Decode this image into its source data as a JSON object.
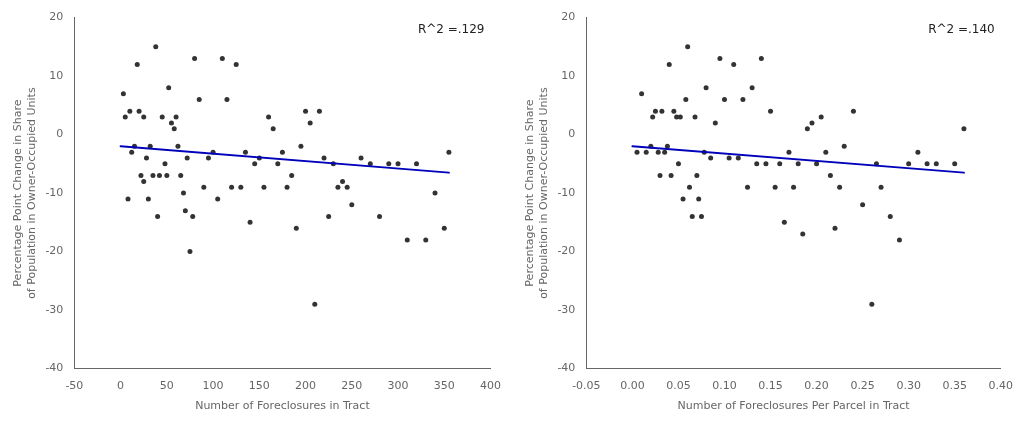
{
  "chart_data": [
    {
      "type": "scatter",
      "xlabel": "Number of Foreclosures in Tract",
      "ylabel": "Percentage Point Change in Share\nof Population in Owner-Occupied Units",
      "xlim": [
        -50,
        400
      ],
      "ylim": [
        -40,
        20
      ],
      "xticks": [
        -50,
        0,
        50,
        100,
        150,
        200,
        250,
        300,
        350,
        400
      ],
      "yticks": [
        -40,
        -30,
        -20,
        -10,
        0,
        10,
        20
      ],
      "grid": false,
      "annotation": "R^2 =.129",
      "series": [
        {
          "type": "scatter",
          "color": "#333333",
          "marker": "point",
          "x": [
            3,
            5,
            8,
            10,
            12,
            15,
            18,
            20,
            22,
            25,
            25,
            28,
            30,
            32,
            35,
            38,
            40,
            42,
            45,
            48,
            50,
            52,
            55,
            58,
            60,
            62,
            65,
            68,
            70,
            72,
            75,
            78,
            80,
            85,
            90,
            95,
            100,
            105,
            110,
            115,
            120,
            125,
            130,
            135,
            140,
            145,
            150,
            155,
            160,
            165,
            170,
            175,
            180,
            185,
            190,
            195,
            200,
            205,
            210,
            215,
            220,
            225,
            230,
            235,
            240,
            245,
            250,
            260,
            270,
            280,
            290,
            300,
            310,
            320,
            330,
            340,
            350,
            355
          ],
          "values": [
            7,
            3,
            -11,
            4,
            -3,
            -2,
            12,
            4,
            -7,
            -8,
            3,
            -4,
            -11,
            -2,
            -7,
            15,
            -14,
            -7,
            3,
            -5,
            -7,
            8,
            2,
            1,
            3,
            -2,
            -7,
            -10,
            -13,
            -4,
            -20,
            -14,
            13,
            6,
            -9,
            -4,
            -3,
            -11,
            13,
            6,
            -9,
            12,
            -9,
            -3,
            -15,
            -5,
            -4,
            -9,
            3,
            1,
            -5,
            -3,
            -9,
            -7,
            -16,
            -2,
            4,
            2,
            -29,
            4,
            -4,
            -14,
            -5,
            -9,
            -8,
            -9,
            -12,
            -4,
            -5,
            -14,
            -5,
            -5,
            -18,
            -5,
            -18,
            -10,
            -16,
            -3
          ]
        },
        {
          "type": "line",
          "color": "#0000bb",
          "line_style": "solid",
          "x": [
            0,
            355
          ],
          "values": [
            -2.0,
            -6.5
          ]
        }
      ]
    },
    {
      "type": "scatter",
      "xlabel": "Number of Foreclosures Per Parcel in Tract",
      "ylabel": "Percentage Point Change in Share\nof Population in Owner-Occupied Units",
      "xlim": [
        -0.05,
        0.4
      ],
      "ylim": [
        -40,
        20
      ],
      "xticks": [
        {
          "value": -0.05,
          "label": "-0.05"
        },
        {
          "value": 0.0,
          "label": "0.00"
        },
        {
          "value": 0.05,
          "label": "0.05"
        },
        {
          "value": 0.1,
          "label": "0.10"
        },
        {
          "value": 0.15,
          "label": "0.15"
        },
        {
          "value": 0.2,
          "label": "0.20"
        },
        {
          "value": 0.25,
          "label": "0.25"
        },
        {
          "value": 0.3,
          "label": "0.30"
        },
        {
          "value": 0.35,
          "label": "0.35"
        },
        {
          "value": 0.4,
          "label": "0.40"
        }
      ],
      "yticks": [
        -40,
        -30,
        -20,
        -10,
        0,
        10,
        20
      ],
      "grid": false,
      "annotation": "R^2 =.140",
      "series": [
        {
          "type": "scatter",
          "color": "#333333",
          "marker": "point",
          "x": [
            0.005,
            0.01,
            0.015,
            0.02,
            0.022,
            0.025,
            0.028,
            0.03,
            0.032,
            0.035,
            0.038,
            0.04,
            0.042,
            0.045,
            0.048,
            0.05,
            0.052,
            0.055,
            0.058,
            0.06,
            0.062,
            0.065,
            0.068,
            0.07,
            0.072,
            0.075,
            0.078,
            0.08,
            0.085,
            0.09,
            0.095,
            0.1,
            0.105,
            0.11,
            0.115,
            0.12,
            0.125,
            0.13,
            0.135,
            0.14,
            0.145,
            0.15,
            0.155,
            0.16,
            0.165,
            0.17,
            0.175,
            0.18,
            0.185,
            0.19,
            0.195,
            0.2,
            0.205,
            0.21,
            0.215,
            0.22,
            0.225,
            0.23,
            0.24,
            0.25,
            0.26,
            0.265,
            0.27,
            0.28,
            0.29,
            0.3,
            0.31,
            0.32,
            0.33,
            0.35,
            0.36
          ],
          "values": [
            -3,
            7,
            -3,
            -2,
            3,
            4,
            -3,
            -7,
            4,
            -3,
            -2,
            12,
            -7,
            4,
            3,
            -5,
            3,
            -11,
            6,
            15,
            -9,
            -14,
            3,
            -7,
            -11,
            -14,
            -3,
            8,
            -4,
            2,
            13,
            6,
            -4,
            12,
            -4,
            6,
            -9,
            8,
            -5,
            13,
            -5,
            4,
            -9,
            -5,
            -15,
            -3,
            -9,
            -5,
            -17,
            1,
            2,
            -5,
            3,
            -3,
            -7,
            -16,
            -9,
            -2,
            4,
            -12,
            -29,
            -5,
            -9,
            -14,
            -18,
            -5,
            -3,
            -5,
            -5,
            -5,
            1
          ]
        },
        {
          "type": "line",
          "color": "#0000bb",
          "line_style": "solid",
          "x": [
            0.0,
            0.36
          ],
          "values": [
            -2.0,
            -6.5
          ]
        }
      ]
    }
  ]
}
